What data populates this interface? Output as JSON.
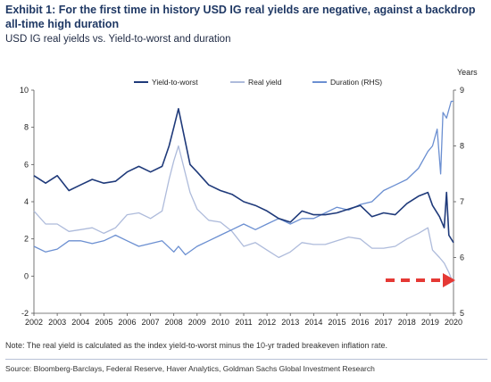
{
  "title": "Exhibit 1: For the first time in history USD IG real yields are negative, against a backdrop all-time high duration",
  "subtitle": "USD IG real yields vs. Yield-to-worst and duration",
  "note": "Note: The real yield is calculated as the index yield-to-worst minus the 10-yr traded breakeven inflation rate.",
  "source": "Source: Bloomberg-Barclays, Federal Reserve, Haver Analytics, Goldman Sachs Global Investment Research",
  "chart_data": {
    "type": "line",
    "x_label": "",
    "y_label_left": "",
    "y_label_right": "Years",
    "y_left_ticks": [
      "10",
      "8",
      "6",
      "4",
      "2",
      "0",
      "-2"
    ],
    "y_right_ticks": [
      "9",
      "8",
      "7",
      "6",
      "5"
    ],
    "x_ticks": [
      "2002",
      "2003",
      "2004",
      "2005",
      "2006",
      "2007",
      "2008",
      "2009",
      "2010",
      "2011",
      "2012",
      "2013",
      "2014",
      "2015",
      "2016",
      "2017",
      "2018",
      "2019",
      "2020"
    ],
    "ylim_left": [
      -2,
      10
    ],
    "ylim_right": [
      5,
      9
    ],
    "xlim": [
      2002,
      2020
    ],
    "grid": false,
    "legend_position": "top",
    "annotation": "red dashed arrow pointing to latest real yield below zero",
    "series": [
      {
        "name": "Yield-to-worst",
        "axis": "left",
        "color": "#1f3a7a",
        "points": [
          [
            2002,
            5.4
          ],
          [
            2002.5,
            5.0
          ],
          [
            2003,
            5.4
          ],
          [
            2003.5,
            4.6
          ],
          [
            2004,
            4.9
          ],
          [
            2004.5,
            5.2
          ],
          [
            2005,
            5.0
          ],
          [
            2005.5,
            5.1
          ],
          [
            2006,
            5.6
          ],
          [
            2006.5,
            5.9
          ],
          [
            2007,
            5.6
          ],
          [
            2007.5,
            5.9
          ],
          [
            2007.8,
            7.0
          ],
          [
            2008,
            8.0
          ],
          [
            2008.2,
            9.0
          ],
          [
            2008.4,
            7.8
          ],
          [
            2008.7,
            6.0
          ],
          [
            2009,
            5.6
          ],
          [
            2009.5,
            4.9
          ],
          [
            2010,
            4.6
          ],
          [
            2010.5,
            4.4
          ],
          [
            2011,
            4.0
          ],
          [
            2011.5,
            3.8
          ],
          [
            2012,
            3.5
          ],
          [
            2012.5,
            3.1
          ],
          [
            2013,
            2.9
          ],
          [
            2013.5,
            3.5
          ],
          [
            2014,
            3.3
          ],
          [
            2014.5,
            3.3
          ],
          [
            2015,
            3.4
          ],
          [
            2015.5,
            3.6
          ],
          [
            2016,
            3.8
          ],
          [
            2016.5,
            3.2
          ],
          [
            2017,
            3.4
          ],
          [
            2017.5,
            3.3
          ],
          [
            2018,
            3.9
          ],
          [
            2018.5,
            4.3
          ],
          [
            2018.9,
            4.5
          ],
          [
            2019.1,
            3.8
          ],
          [
            2019.4,
            3.2
          ],
          [
            2019.6,
            2.6
          ],
          [
            2019.7,
            4.5
          ],
          [
            2019.8,
            2.2
          ],
          [
            2020,
            1.8
          ]
        ]
      },
      {
        "name": "Real yield",
        "axis": "left",
        "color": "#aebbdb",
        "points": [
          [
            2002,
            3.5
          ],
          [
            2002.5,
            2.8
          ],
          [
            2003,
            2.8
          ],
          [
            2003.5,
            2.4
          ],
          [
            2004,
            2.5
          ],
          [
            2004.5,
            2.6
          ],
          [
            2005,
            2.3
          ],
          [
            2005.5,
            2.6
          ],
          [
            2006,
            3.3
          ],
          [
            2006.5,
            3.4
          ],
          [
            2007,
            3.1
          ],
          [
            2007.5,
            3.5
          ],
          [
            2007.8,
            5.2
          ],
          [
            2008,
            6.2
          ],
          [
            2008.2,
            7.0
          ],
          [
            2008.4,
            6.0
          ],
          [
            2008.7,
            4.5
          ],
          [
            2009,
            3.6
          ],
          [
            2009.5,
            3.0
          ],
          [
            2010,
            2.9
          ],
          [
            2010.5,
            2.4
          ],
          [
            2011,
            1.6
          ],
          [
            2011.5,
            1.8
          ],
          [
            2012,
            1.4
          ],
          [
            2012.5,
            1.0
          ],
          [
            2013,
            1.3
          ],
          [
            2013.5,
            1.8
          ],
          [
            2014,
            1.7
          ],
          [
            2014.5,
            1.7
          ],
          [
            2015,
            1.9
          ],
          [
            2015.5,
            2.1
          ],
          [
            2016,
            2.0
          ],
          [
            2016.5,
            1.5
          ],
          [
            2017,
            1.5
          ],
          [
            2017.5,
            1.6
          ],
          [
            2018,
            2.0
          ],
          [
            2018.5,
            2.3
          ],
          [
            2018.9,
            2.6
          ],
          [
            2019.1,
            1.4
          ],
          [
            2019.4,
            1.0
          ],
          [
            2019.6,
            0.7
          ],
          [
            2019.8,
            0.2
          ],
          [
            2020,
            -0.4
          ]
        ]
      },
      {
        "name": "Duration (RHS)",
        "axis": "right",
        "color": "#6b8fd1",
        "points": [
          [
            2002,
            6.2
          ],
          [
            2002.5,
            6.1
          ],
          [
            2003,
            6.15
          ],
          [
            2003.5,
            6.3
          ],
          [
            2004,
            6.3
          ],
          [
            2004.5,
            6.25
          ],
          [
            2005,
            6.3
          ],
          [
            2005.5,
            6.4
          ],
          [
            2006,
            6.3
          ],
          [
            2006.5,
            6.2
          ],
          [
            2007,
            6.25
          ],
          [
            2007.5,
            6.3
          ],
          [
            2008,
            6.1
          ],
          [
            2008.2,
            6.2
          ],
          [
            2008.5,
            6.05
          ],
          [
            2009,
            6.2
          ],
          [
            2009.5,
            6.3
          ],
          [
            2010,
            6.4
          ],
          [
            2010.5,
            6.5
          ],
          [
            2011,
            6.6
          ],
          [
            2011.5,
            6.5
          ],
          [
            2012,
            6.6
          ],
          [
            2012.5,
            6.7
          ],
          [
            2013,
            6.6
          ],
          [
            2013.5,
            6.7
          ],
          [
            2014,
            6.7
          ],
          [
            2014.5,
            6.8
          ],
          [
            2015,
            6.9
          ],
          [
            2015.5,
            6.85
          ],
          [
            2016,
            6.95
          ],
          [
            2016.5,
            7.0
          ],
          [
            2017,
            7.2
          ],
          [
            2017.5,
            7.3
          ],
          [
            2018,
            7.4
          ],
          [
            2018.5,
            7.6
          ],
          [
            2018.9,
            7.9
          ],
          [
            2019.1,
            8.0
          ],
          [
            2019.3,
            8.3
          ],
          [
            2019.45,
            7.5
          ],
          [
            2019.55,
            8.6
          ],
          [
            2019.7,
            8.5
          ],
          [
            2019.9,
            8.8
          ],
          [
            2020,
            8.8
          ]
        ]
      }
    ]
  }
}
